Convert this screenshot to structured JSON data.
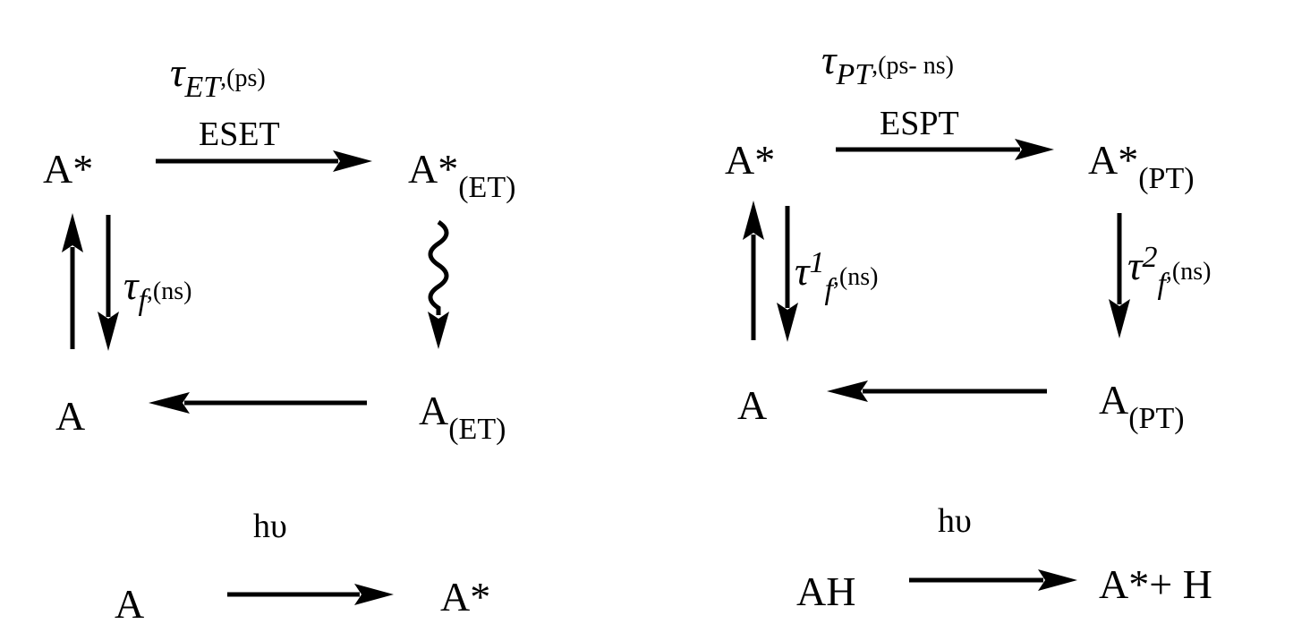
{
  "left_scheme": {
    "tau_symbol": "τ",
    "tau_subscript": "ET",
    "tau_units": ",(ps)",
    "arrow_label": "ESET",
    "node_excited": "A*",
    "node_excited_et_main": "A*",
    "node_excited_et_sub": "(ET)",
    "node_ground": "A",
    "node_ground_et_main": "A",
    "node_ground_et_sub": "(ET)",
    "fluor_tau_symbol": "τ",
    "fluor_tau_subscript": "f",
    "fluor_tau_units": ",(ns)",
    "excitation_label": "hυ",
    "excitation_from": "A",
    "excitation_to": "A*"
  },
  "right_scheme": {
    "tau_symbol": "τ",
    "tau_subscript": "PT",
    "tau_units": ",(ps- ns)",
    "arrow_label": "ESPT",
    "node_excited": "A*",
    "node_excited_pt_main": "A*",
    "node_excited_pt_sub": "(PT)",
    "node_ground": "A",
    "node_ground_pt_main": "A",
    "node_ground_pt_sub": "(PT)",
    "fluor1_tau_symbol": "τ",
    "fluor1_superscript": "1",
    "fluor1_subscript": "f",
    "fluor1_units": ",(ns)",
    "fluor2_tau_symbol": "τ",
    "fluor2_superscript": "2",
    "fluor2_subscript": "f",
    "fluor2_units": ",(ns)",
    "excitation_label": "hυ",
    "excitation_from": "AH",
    "excitation_to": "A*+ H"
  }
}
